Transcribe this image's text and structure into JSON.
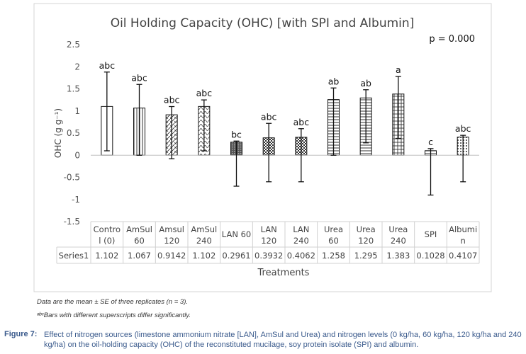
{
  "chart_data": {
    "type": "bar",
    "title": "Oil Holding Capacity (OHC) [with SPI and Albumin]",
    "annotation": "p = 0.000",
    "xlabel": "Treatments",
    "ylabel": "OHC (g g⁻¹)",
    "ylim": [
      -1.5,
      2.5
    ],
    "yticks": [
      2.5,
      2,
      1.5,
      1,
      0.5,
      0,
      -0.5,
      -1,
      -1.5
    ],
    "ytick_labels": [
      "2.5",
      "2",
      "1.5",
      "1",
      "0.5",
      "0",
      "-0.5",
      "-1",
      "-1.5"
    ],
    "grid": false,
    "categories": [
      [
        "Contro",
        "l (0)"
      ],
      [
        "AmSul",
        "60"
      ],
      [
        "Amsul",
        "120"
      ],
      [
        "AmSul",
        "240"
      ],
      [
        "LAN 60"
      ],
      [
        "LAN",
        "120"
      ],
      [
        "LAN",
        "240"
      ],
      [
        "Urea",
        "60"
      ],
      [
        "Urea",
        "120"
      ],
      [
        "Urea",
        "240"
      ],
      [
        "SPI"
      ],
      [
        "Albumi",
        "n"
      ]
    ],
    "series": [
      {
        "name": "Series1",
        "values": [
          1.102,
          1.067,
          0.9142,
          1.102,
          0.2961,
          0.3932,
          0.4062,
          1.258,
          1.295,
          1.383,
          0.1028,
          0.4107
        ],
        "value_labels": [
          "1.102",
          "1.067",
          "0.9142",
          "1.102",
          "0.2961",
          "0.3932",
          "0.4062",
          "1.258",
          "1.295",
          "1.383",
          "0.1028",
          "0.4107"
        ],
        "error_low": [
          0.1,
          0.0,
          -0.08,
          0.1,
          -0.7,
          -0.6,
          -0.6,
          0.0,
          0.28,
          0.38,
          -0.9,
          -0.6
        ],
        "error_high": [
          1.88,
          1.6,
          1.1,
          1.25,
          0.32,
          0.72,
          0.6,
          1.52,
          1.48,
          1.78,
          0.15,
          0.45
        ],
        "letters": [
          "abc",
          "abc",
          "abc",
          "abc",
          "bc",
          "abc",
          "abc",
          "ab",
          "ab",
          "a",
          "c",
          "abc"
        ],
        "patterns": [
          "none",
          "vertical",
          "zigzag",
          "wave",
          "dense",
          "checker",
          "checker",
          "hstripe",
          "hstripe",
          "grid",
          "hstripe",
          "dots"
        ]
      }
    ]
  },
  "notes": {
    "line1": "Data are the mean ± SE of three replicates (n = 3).",
    "line2": "ᵃᵇᶜBars with different superscripts differ significantly."
  },
  "figure": {
    "label": "Figure 7:",
    "caption": "Effect of nitrogen sources (limestone ammonium nitrate [LAN], AmSul and Urea) and nitrogen levels (0 kg/ha, 60 kg/ha, 120 kg/ha and 240 kg/ha) on the oil-holding capacity (OHC) of the reconstituted mucilage, soy protein isolate (SPI) and albumin."
  }
}
